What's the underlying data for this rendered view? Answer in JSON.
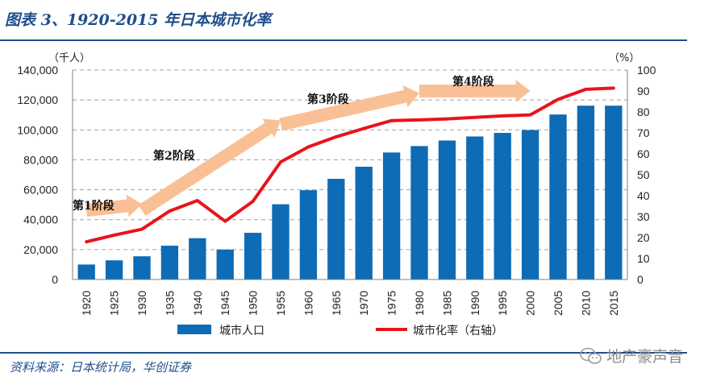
{
  "header": {
    "title": "图表 3、1920-2015 年日本城市化率"
  },
  "footer": {
    "source": "资料来源：日本统计局，华创证券",
    "watermark": "地产豪声音"
  },
  "colors": {
    "bar": "#0e6bb5",
    "line": "#e8141b",
    "arrow": "#f9c096",
    "title": "#1f4e8c",
    "axis": "#808080",
    "grid": "#a0a0a0"
  },
  "chart_data": {
    "type": "bar+line",
    "title": "1920-2015 年日本城市化率",
    "categories": [
      "1920",
      "1925",
      "1930",
      "1935",
      "1940",
      "1945",
      "1950",
      "1955",
      "1960",
      "1965",
      "1970",
      "1975",
      "1980",
      "1985",
      "1990",
      "1995",
      "2000",
      "2005",
      "2010",
      "2015"
    ],
    "series": [
      {
        "name": "城市人口",
        "type": "bar",
        "axis": "left",
        "values": [
          10000,
          12800,
          15500,
          22600,
          27600,
          20000,
          31200,
          50300,
          59700,
          67300,
          75400,
          84900,
          89200,
          92900,
          95600,
          98000,
          99900,
          110300,
          116200,
          116200
        ]
      },
      {
        "name": "城市化率（右轴）",
        "type": "line",
        "axis": "right",
        "values": [
          18.0,
          21.2,
          24.0,
          32.7,
          37.7,
          27.8,
          37.3,
          56.1,
          63.3,
          68.1,
          72.1,
          75.9,
          76.2,
          76.7,
          77.4,
          78.1,
          78.6,
          86.0,
          90.8,
          91.4
        ]
      }
    ],
    "yleft": {
      "label": "（千人）",
      "range": [
        0,
        140000
      ],
      "ticks": [
        "0",
        "20,000",
        "40,000",
        "60,000",
        "80,000",
        "100,000",
        "120,000",
        "140,000"
      ]
    },
    "yright": {
      "label": "（%）",
      "range": [
        0,
        100
      ],
      "ticks": [
        "0",
        "10",
        "20",
        "30",
        "40",
        "50",
        "60",
        "70",
        "80",
        "90",
        "100"
      ]
    },
    "grid": true,
    "legend": {
      "position": "bottom",
      "entries": [
        "城市人口",
        "城市化率（右轴）"
      ]
    },
    "annotations": [
      {
        "text": "第1阶段",
        "from": [
          "1920",
          33
        ],
        "to": [
          "1930",
          36
        ]
      },
      {
        "text": "第2阶段",
        "from": [
          "1930",
          33
        ],
        "to": [
          "1955",
          76
        ]
      },
      {
        "text": "第3阶段",
        "from": [
          "1955",
          74
        ],
        "to": [
          "1980",
          89
        ]
      },
      {
        "text": "第4阶段",
        "from": [
          "1980",
          90
        ],
        "to": [
          "2000",
          90
        ]
      }
    ]
  }
}
